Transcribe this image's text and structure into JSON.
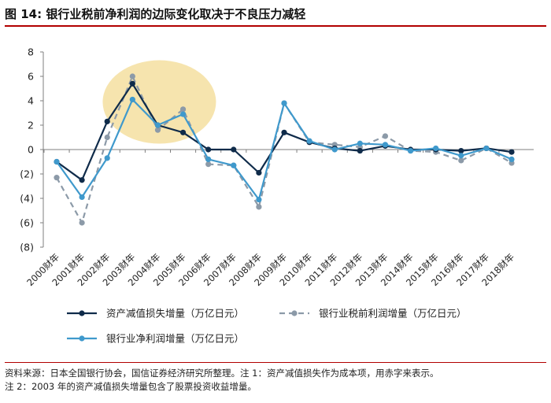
{
  "header": {
    "title": "图 14:  银行业税前净利润的边际变化取决于不良压力减轻"
  },
  "footer": {
    "source_note": "资料来源：日本全国银行协会，国信证券经济研究所整理。注 1：资产减值损失作为成本项，用赤字来表示。",
    "note2": "注 2：2003 年的资产减值损失增量包含了股票投资收益增量。"
  },
  "colors": {
    "dark_navy": "#0f2b4a",
    "gray_dashed": "#8c9aa8",
    "light_blue": "#3f99cc",
    "highlight": "#f4dfa0",
    "title_rule": "#b20000"
  },
  "chart_data": {
    "type": "line",
    "categories": [
      "2000财年",
      "2001财年",
      "2002财年",
      "2003财年",
      "2004财年",
      "2005财年",
      "2006财年",
      "2007财年",
      "2008财年",
      "2009财年",
      "2010财年",
      "2011财年",
      "2012财年",
      "2013财年",
      "2014财年",
      "2015财年",
      "2016财年",
      "2017财年",
      "2018财年"
    ],
    "y_ticks": [
      8,
      6,
      4,
      2,
      0,
      -2,
      -4,
      -6,
      -8
    ],
    "y_tick_labels": [
      "8",
      "6",
      "4",
      "2",
      "0",
      "(2)",
      "(4)",
      "(6)",
      "(8)"
    ],
    "ylim": [
      -8,
      8
    ],
    "grid": false,
    "legend_position": "bottom",
    "series": [
      {
        "name": "资产减值损失增量（万亿日元）",
        "style": "solid",
        "color": "#0f2b4a",
        "values": [
          -1.0,
          -2.5,
          2.3,
          5.4,
          2.0,
          1.4,
          0.0,
          0.0,
          -1.9,
          1.4,
          0.6,
          0.1,
          -0.1,
          0.3,
          0.0,
          0.0,
          -0.1,
          0.1,
          -0.2
        ]
      },
      {
        "name": "银行业税前利润增量（万亿日元）",
        "style": "dashed",
        "color": "#8c9aa8",
        "values": [
          -2.3,
          -6.0,
          1.0,
          6.0,
          1.6,
          3.3,
          -1.2,
          -1.3,
          -4.7,
          3.8,
          0.6,
          0.4,
          0.2,
          1.1,
          -0.1,
          -0.2,
          -0.9,
          0.1,
          -1.1
        ]
      },
      {
        "name": "银行业净利润增量（万亿日元）",
        "style": "solid",
        "color": "#3f99cc",
        "values": [
          -1.0,
          -3.9,
          -0.7,
          4.1,
          2.0,
          2.9,
          -0.8,
          -1.3,
          -4.1,
          3.8,
          0.7,
          0.0,
          0.5,
          0.4,
          -0.1,
          0.1,
          -0.5,
          0.1,
          -0.8
        ]
      }
    ]
  }
}
